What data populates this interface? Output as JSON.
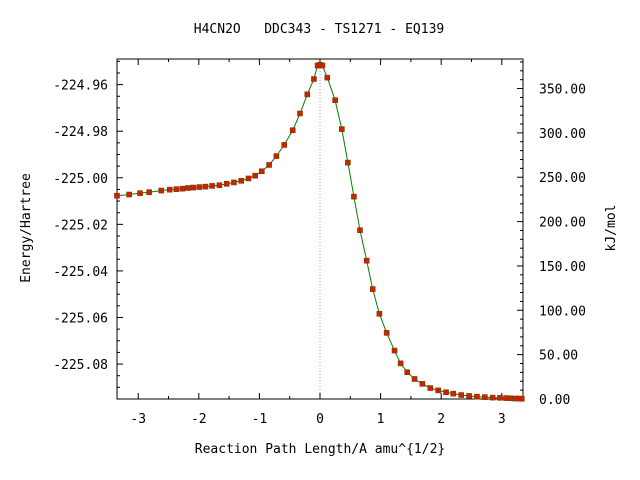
{
  "chart_data": {
    "type": "line",
    "title": "H4CN2O   DDC343 - TS1271 - EQ139",
    "xlabel": "Reaction Path Length/A amu^{1/2}",
    "ylabel": "Energy/Hartree",
    "y2label": "kJ/mol",
    "xlim": [
      -3.35,
      3.35
    ],
    "ylim": [
      -225.095,
      -224.949
    ],
    "y2lim": [
      0.0,
      383.3
    ],
    "x_ticks": [
      -3,
      -2,
      -1,
      0,
      1,
      2,
      3
    ],
    "x_tick_labels": [
      "-3",
      "-2",
      "-1",
      "0",
      "1",
      "2",
      "3"
    ],
    "y_ticks": [
      -224.96,
      -224.98,
      -225.0,
      -225.02,
      -225.04,
      -225.06,
      -225.08
    ],
    "y_tick_labels": [
      "-224.96",
      "-224.98",
      "-225.00",
      "-225.02",
      "-225.04",
      "-225.06",
      "-225.08"
    ],
    "y2_ticks": [
      350,
      300,
      250,
      200,
      150,
      100,
      50,
      0
    ],
    "y2_tick_labels": [
      "350.00",
      "300.00",
      "250.00",
      "200.00",
      "150.00",
      "100.00",
      "50.00",
      "0.00"
    ],
    "ts_line_x": 0,
    "line_color": "#008000",
    "marker_color": "#cc2200",
    "ts_line_color": "#999999",
    "points": [
      {
        "x": -3.35,
        "y": -225.0077
      },
      {
        "x": -3.15,
        "y": -225.0072
      },
      {
        "x": -2.97,
        "y": -225.0066
      },
      {
        "x": -2.82,
        "y": -225.0062
      },
      {
        "x": -2.62,
        "y": -225.0055
      },
      {
        "x": -2.48,
        "y": -225.0051
      },
      {
        "x": -2.37,
        "y": -225.0049
      },
      {
        "x": -2.27,
        "y": -225.0047
      },
      {
        "x": -2.18,
        "y": -225.0044
      },
      {
        "x": -2.09,
        "y": -225.0042
      },
      {
        "x": -1.99,
        "y": -225.004
      },
      {
        "x": -1.89,
        "y": -225.0038
      },
      {
        "x": -1.78,
        "y": -225.0035
      },
      {
        "x": -1.66,
        "y": -225.0032
      },
      {
        "x": -1.54,
        "y": -225.0026
      },
      {
        "x": -1.42,
        "y": -225.002
      },
      {
        "x": -1.3,
        "y": -225.0013
      },
      {
        "x": -1.18,
        "y": -225.0003
      },
      {
        "x": -1.07,
        "y": -224.9991
      },
      {
        "x": -0.96,
        "y": -224.9972
      },
      {
        "x": -0.84,
        "y": -224.9945
      },
      {
        "x": -0.72,
        "y": -224.9907
      },
      {
        "x": -0.59,
        "y": -224.9859
      },
      {
        "x": -0.45,
        "y": -224.9796
      },
      {
        "x": -0.33,
        "y": -224.9724
      },
      {
        "x": -0.21,
        "y": -224.9642
      },
      {
        "x": -0.1,
        "y": -224.9576
      },
      {
        "x": -0.04,
        "y": -224.9518
      },
      {
        "x": 0.0,
        "y": -224.9515
      },
      {
        "x": 0.04,
        "y": -224.9518
      },
      {
        "x": 0.12,
        "y": -224.957
      },
      {
        "x": 0.25,
        "y": -224.9667
      },
      {
        "x": 0.36,
        "y": -224.9791
      },
      {
        "x": 0.46,
        "y": -224.9935
      },
      {
        "x": 0.56,
        "y": -225.0081
      },
      {
        "x": 0.66,
        "y": -225.0225
      },
      {
        "x": 0.77,
        "y": -225.0356
      },
      {
        "x": 0.87,
        "y": -225.0478
      },
      {
        "x": 0.98,
        "y": -225.0584
      },
      {
        "x": 1.1,
        "y": -225.0666
      },
      {
        "x": 1.23,
        "y": -225.0742
      },
      {
        "x": 1.33,
        "y": -225.0797
      },
      {
        "x": 1.44,
        "y": -225.0835
      },
      {
        "x": 1.56,
        "y": -225.0864
      },
      {
        "x": 1.69,
        "y": -225.0885
      },
      {
        "x": 1.82,
        "y": -225.0903
      },
      {
        "x": 1.95,
        "y": -225.0913
      },
      {
        "x": 2.08,
        "y": -225.0921
      },
      {
        "x": 2.2,
        "y": -225.0927
      },
      {
        "x": 2.33,
        "y": -225.0933
      },
      {
        "x": 2.46,
        "y": -225.0937
      },
      {
        "x": 2.59,
        "y": -225.094
      },
      {
        "x": 2.72,
        "y": -225.0942
      },
      {
        "x": 2.85,
        "y": -225.0944
      },
      {
        "x": 2.97,
        "y": -225.0945
      },
      {
        "x": 3.07,
        "y": -225.0946
      },
      {
        "x": 3.15,
        "y": -225.0947
      },
      {
        "x": 3.22,
        "y": -225.0948
      },
      {
        "x": 3.28,
        "y": -225.0948
      },
      {
        "x": 3.33,
        "y": -225.0949
      }
    ]
  }
}
